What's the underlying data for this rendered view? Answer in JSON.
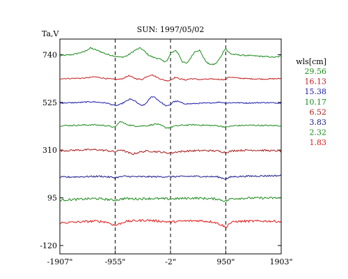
{
  "chart_data": {
    "type": "line",
    "title": "SUN: 1997/05/02",
    "ylabel": "Ta,V",
    "xlabel": "",
    "xlim": [
      -1907,
      1903
    ],
    "ylim": [
      -120,
      760
    ],
    "x_ticks": [
      {
        "value": -1907,
        "label": "-1907\""
      },
      {
        "value": -955,
        "label": "-955\""
      },
      {
        "value": -2,
        "label": "-2\""
      },
      {
        "value": 950,
        "label": "950\""
      },
      {
        "value": 1903,
        "label": "1903\""
      }
    ],
    "y_ticks": [
      {
        "value": 740,
        "label": "740"
      },
      {
        "value": 525,
        "label": "525"
      },
      {
        "value": 310,
        "label": "310"
      },
      {
        "value": 95,
        "label": "95"
      },
      {
        "value": -120,
        "label": "-120"
      }
    ],
    "vlines": [
      -955,
      -2,
      950
    ],
    "legend_title": "wls[cm]",
    "legend_position": "right",
    "series": [
      {
        "name": "29.56",
        "color": "#1a8a1a",
        "base": 735,
        "points": [
          [
            -1907,
            735
          ],
          [
            -1700,
            740
          ],
          [
            -1500,
            752
          ],
          [
            -1380,
            770
          ],
          [
            -1250,
            758
          ],
          [
            -1100,
            742
          ],
          [
            -955,
            733
          ],
          [
            -850,
            728
          ],
          [
            -750,
            735
          ],
          [
            -600,
            762
          ],
          [
            -520,
            770
          ],
          [
            -450,
            755
          ],
          [
            -380,
            738
          ],
          [
            -300,
            728
          ],
          [
            -200,
            722
          ],
          [
            -120,
            710
          ],
          [
            -60,
            712
          ],
          [
            0,
            745
          ],
          [
            80,
            760
          ],
          [
            140,
            742
          ],
          [
            200,
            708
          ],
          [
            280,
            700
          ],
          [
            350,
            728
          ],
          [
            420,
            755
          ],
          [
            500,
            760
          ],
          [
            580,
            720
          ],
          [
            640,
            700
          ],
          [
            720,
            695
          ],
          [
            780,
            700
          ],
          [
            860,
            728
          ],
          [
            920,
            760
          ],
          [
            950,
            770
          ],
          [
            980,
            755
          ],
          [
            1050,
            742
          ],
          [
            1200,
            738
          ],
          [
            1400,
            735
          ],
          [
            1600,
            732
          ],
          [
            1800,
            728
          ],
          [
            1903,
            734
          ]
        ],
        "noise": 3
      },
      {
        "name": "16.13",
        "color": "#c41a1a",
        "base": 632,
        "points": [
          [
            -1907,
            632
          ],
          [
            -1500,
            634
          ],
          [
            -1300,
            640
          ],
          [
            -1150,
            634
          ],
          [
            -955,
            628
          ],
          [
            -850,
            630
          ],
          [
            -720,
            645
          ],
          [
            -600,
            632
          ],
          [
            -500,
            628
          ],
          [
            -420,
            640
          ],
          [
            -330,
            650
          ],
          [
            -250,
            640
          ],
          [
            -150,
            628
          ],
          [
            -60,
            622
          ],
          [
            -2,
            626
          ],
          [
            80,
            638
          ],
          [
            150,
            632
          ],
          [
            250,
            626
          ],
          [
            350,
            632
          ],
          [
            500,
            628
          ],
          [
            700,
            630
          ],
          [
            950,
            628
          ],
          [
            1000,
            640
          ],
          [
            1100,
            636
          ],
          [
            1300,
            632
          ],
          [
            1600,
            630
          ],
          [
            1903,
            632
          ]
        ],
        "noise": 2.5
      },
      {
        "name": "15.38",
        "color": "#1a1aa8",
        "base": 522,
        "points": [
          [
            -1907,
            522
          ],
          [
            -1600,
            524
          ],
          [
            -1350,
            528
          ],
          [
            -1100,
            522
          ],
          [
            -955,
            510
          ],
          [
            -880,
            514
          ],
          [
            -800,
            525
          ],
          [
            -700,
            540
          ],
          [
            -620,
            532
          ],
          [
            -520,
            512
          ],
          [
            -460,
            512
          ],
          [
            -400,
            528
          ],
          [
            -340,
            548
          ],
          [
            -290,
            552
          ],
          [
            -230,
            538
          ],
          [
            -150,
            522
          ],
          [
            -70,
            508
          ],
          [
            -2,
            514
          ],
          [
            40,
            528
          ],
          [
            120,
            530
          ],
          [
            220,
            520
          ],
          [
            320,
            518
          ],
          [
            450,
            520
          ],
          [
            650,
            522
          ],
          [
            850,
            526
          ],
          [
            950,
            522
          ],
          [
            1100,
            524
          ],
          [
            1300,
            522
          ],
          [
            1600,
            524
          ],
          [
            1903,
            522
          ]
        ],
        "noise": 2.5
      },
      {
        "name": "10.17",
        "color": "#1a8a1a",
        "base": 420,
        "points": [
          [
            -1907,
            420
          ],
          [
            -1600,
            422
          ],
          [
            -1300,
            424
          ],
          [
            -1100,
            420
          ],
          [
            -955,
            412
          ],
          [
            -920,
            425
          ],
          [
            -860,
            440
          ],
          [
            -800,
            430
          ],
          [
            -700,
            422
          ],
          [
            -600,
            418
          ],
          [
            -400,
            420
          ],
          [
            -250,
            428
          ],
          [
            -150,
            420
          ],
          [
            -80,
            410
          ],
          [
            -2,
            412
          ],
          [
            60,
            418
          ],
          [
            200,
            422
          ],
          [
            400,
            424
          ],
          [
            600,
            422
          ],
          [
            800,
            420
          ],
          [
            950,
            414
          ],
          [
            1100,
            420
          ],
          [
            1400,
            422
          ],
          [
            1600,
            421
          ],
          [
            1903,
            420
          ]
        ],
        "noise": 3
      },
      {
        "name": "6.52",
        "color": "#a81a1a",
        "base": 307,
        "points": [
          [
            -1907,
            307
          ],
          [
            -1600,
            310
          ],
          [
            -1300,
            312
          ],
          [
            -1100,
            308
          ],
          [
            -955,
            302
          ],
          [
            -850,
            312
          ],
          [
            -750,
            300
          ],
          [
            -650,
            292
          ],
          [
            -550,
            300
          ],
          [
            -400,
            306
          ],
          [
            -200,
            302
          ],
          [
            -2,
            296
          ],
          [
            100,
            302
          ],
          [
            300,
            306
          ],
          [
            600,
            308
          ],
          [
            800,
            306
          ],
          [
            950,
            300
          ],
          [
            1100,
            308
          ],
          [
            1400,
            310
          ],
          [
            1903,
            306
          ]
        ],
        "noise": 4
      },
      {
        "name": "3.83",
        "color": "#1a1a8a",
        "base": 188,
        "points": [
          [
            -1907,
            188
          ],
          [
            -1500,
            190
          ],
          [
            -1200,
            192
          ],
          [
            -955,
            186
          ],
          [
            -800,
            192
          ],
          [
            -600,
            190
          ],
          [
            -400,
            190
          ],
          [
            -2,
            190
          ],
          [
            400,
            192
          ],
          [
            800,
            190
          ],
          [
            950,
            180
          ],
          [
            1050,
            190
          ],
          [
            1400,
            193
          ],
          [
            1903,
            195
          ]
        ],
        "noise": 3.5
      },
      {
        "name": "2.32",
        "color": "#1a8a1a",
        "base": 88,
        "points": [
          [
            -1907,
            85
          ],
          [
            -1600,
            88
          ],
          [
            -1300,
            92
          ],
          [
            -1100,
            88
          ],
          [
            -955,
            84
          ],
          [
            -800,
            92
          ],
          [
            -600,
            90
          ],
          [
            -400,
            92
          ],
          [
            -2,
            90
          ],
          [
            400,
            94
          ],
          [
            800,
            90
          ],
          [
            950,
            80
          ],
          [
            1050,
            92
          ],
          [
            1400,
            94
          ],
          [
            1903,
            94
          ]
        ],
        "noise": 5
      },
      {
        "name": "1.83",
        "color": "#e01a1a",
        "base": -18,
        "points": [
          [
            -1907,
            -18
          ],
          [
            -1600,
            -14
          ],
          [
            -1300,
            -10
          ],
          [
            -1100,
            -14
          ],
          [
            -955,
            -30
          ],
          [
            -880,
            -22
          ],
          [
            -780,
            -12
          ],
          [
            -600,
            -8
          ],
          [
            -400,
            -6
          ],
          [
            -200,
            -10
          ],
          [
            -2,
            -14
          ],
          [
            200,
            -10
          ],
          [
            500,
            -8
          ],
          [
            750,
            -14
          ],
          [
            900,
            -30
          ],
          [
            950,
            -40
          ],
          [
            1000,
            -22
          ],
          [
            1100,
            -12
          ],
          [
            1400,
            -10
          ],
          [
            1700,
            -10
          ],
          [
            1903,
            -12
          ]
        ],
        "noise": 5
      }
    ]
  }
}
